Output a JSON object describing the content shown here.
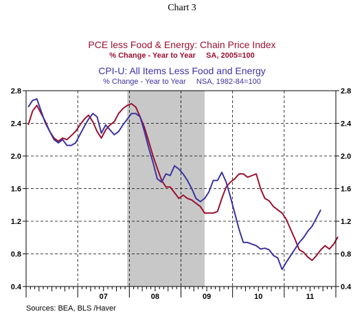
{
  "chart_data": {
    "type": "line",
    "header": "Chart 3",
    "title_1": "PCE less Food & Energy: Chain Price Index",
    "subtitle_1": "% Change - Year to Year     SA, 2005=100",
    "title_2": "CPI-U: All Items Less Food and Energy",
    "subtitle_2": "% Change - Year to Year     NSA, 1982-84=100",
    "source": "Sources: BEA, BLS /Haver",
    "ylim": [
      0.4,
      2.8
    ],
    "y_ticks": [
      "0.4",
      "0.8",
      "1.2",
      "1.6",
      "2.0",
      "2.4",
      "2.8"
    ],
    "x_range": [
      "2006-01",
      "2011-12"
    ],
    "x_tick_labels": [
      {
        "label": "07",
        "year": 2007
      },
      {
        "label": "08",
        "year": 2008
      },
      {
        "label": "09",
        "year": 2009
      },
      {
        "label": "10",
        "year": 2010
      },
      {
        "label": "11",
        "year": 2011
      }
    ],
    "recession": {
      "start": "2007-12",
      "end": "2009-06"
    },
    "grid": true,
    "series": [
      {
        "key": "pce",
        "color": "#9b1030",
        "start": "2006-01",
        "values": [
          2.38,
          2.55,
          2.62,
          2.52,
          2.42,
          2.3,
          2.22,
          2.18,
          2.22,
          2.2,
          2.25,
          2.3,
          2.38,
          2.45,
          2.5,
          2.42,
          2.3,
          2.22,
          2.32,
          2.38,
          2.42,
          2.52,
          2.58,
          2.62,
          2.64,
          2.6,
          2.48,
          2.35,
          2.18,
          2.0,
          1.85,
          1.7,
          1.62,
          1.62,
          1.55,
          1.48,
          1.52,
          1.48,
          1.46,
          1.42,
          1.38,
          1.3,
          1.3,
          1.3,
          1.32,
          1.48,
          1.62,
          1.68,
          1.72,
          1.78,
          1.78,
          1.74,
          1.76,
          1.78,
          1.6,
          1.48,
          1.45,
          1.38,
          1.34,
          1.3,
          1.22,
          1.1,
          0.98,
          0.85,
          0.82,
          0.76,
          0.72,
          0.78,
          0.85,
          0.9,
          0.86,
          0.92,
          1.01
        ]
      },
      {
        "key": "cpi",
        "color": "#3a33a0",
        "start": "2006-01",
        "values": [
          2.6,
          2.68,
          2.7,
          2.55,
          2.4,
          2.3,
          2.2,
          2.16,
          2.2,
          2.13,
          2.13,
          2.16,
          2.26,
          2.36,
          2.45,
          2.52,
          2.48,
          2.28,
          2.38,
          2.32,
          2.26,
          2.3,
          2.38,
          2.45,
          2.52,
          2.52,
          2.48,
          2.3,
          2.1,
          1.92,
          1.72,
          1.68,
          1.78,
          1.76,
          1.88,
          1.84,
          1.78,
          1.7,
          1.6,
          1.48,
          1.44,
          1.48,
          1.56,
          1.7,
          1.7,
          1.8,
          1.68,
          1.5,
          1.3,
          1.1,
          0.94,
          0.94,
          0.92,
          0.9,
          0.86,
          0.87,
          0.85,
          0.78,
          0.75,
          0.61,
          0.7,
          0.78,
          0.86,
          0.94,
          1.0,
          1.08,
          1.14,
          1.24,
          1.34
        ]
      }
    ]
  }
}
